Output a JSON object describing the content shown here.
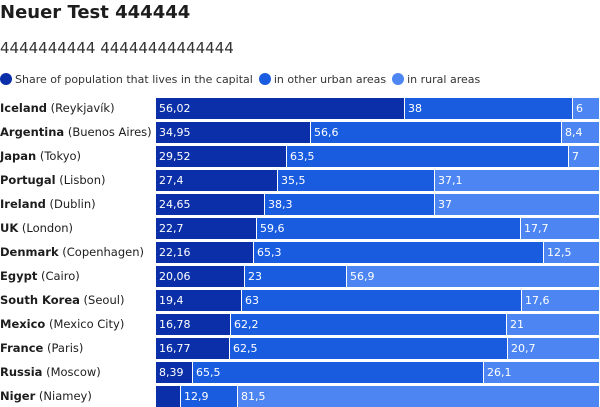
{
  "title": "Neuer Test 444444",
  "subtitle": "4444444444 44444444444444",
  "colors": {
    "capital": "#0a2fa8",
    "urban": "#1a5ce0",
    "rural": "#4d86f2"
  },
  "chart_data": {
    "type": "bar",
    "orientation": "horizontal",
    "stacked": true,
    "xlim": [
      0,
      100
    ],
    "legend_position": "top-left",
    "series": [
      {
        "name": "Share of population that lives in the capital",
        "key": "capital"
      },
      {
        "name": "in other urban areas",
        "key": "urban"
      },
      {
        "name": "in rural areas",
        "key": "rural"
      }
    ],
    "rows": [
      {
        "country": "Iceland",
        "capital_city": "(Reykjavík)",
        "values": [
          56.02,
          38,
          6
        ],
        "labels": [
          "56,02",
          "38",
          "6"
        ]
      },
      {
        "country": "Argentina",
        "capital_city": "(Buenos Aires)",
        "values": [
          34.95,
          56.6,
          8.4
        ],
        "labels": [
          "34,95",
          "56,6",
          "8,4"
        ]
      },
      {
        "country": "Japan",
        "capital_city": "(Tokyo)",
        "values": [
          29.52,
          63.5,
          7
        ],
        "labels": [
          "29,52",
          "63,5",
          "7"
        ]
      },
      {
        "country": "Portugal",
        "capital_city": "(Lisbon)",
        "values": [
          27.4,
          35.5,
          37.1
        ],
        "labels": [
          "27,4",
          "35,5",
          "37,1"
        ]
      },
      {
        "country": "Ireland",
        "capital_city": "(Dublin)",
        "values": [
          24.65,
          38.3,
          37
        ],
        "labels": [
          "24,65",
          "38,3",
          "37"
        ]
      },
      {
        "country": "UK",
        "capital_city": "(London)",
        "values": [
          22.7,
          59.6,
          17.7
        ],
        "labels": [
          "22,7",
          "59,6",
          "17,7"
        ]
      },
      {
        "country": "Denmark",
        "capital_city": "(Copenhagen)",
        "values": [
          22.16,
          65.3,
          12.5
        ],
        "labels": [
          "22,16",
          "65,3",
          "12,5"
        ]
      },
      {
        "country": "Egypt",
        "capital_city": "(Cairo)",
        "values": [
          20.06,
          23,
          56.9
        ],
        "labels": [
          "20,06",
          "23",
          "56,9"
        ]
      },
      {
        "country": "South Korea",
        "capital_city": "(Seoul)",
        "values": [
          19.4,
          63,
          17.6
        ],
        "labels": [
          "19,4",
          "63",
          "17,6"
        ]
      },
      {
        "country": "Mexico",
        "capital_city": "(Mexico City)",
        "values": [
          16.78,
          62.2,
          21
        ],
        "labels": [
          "16,78",
          "62,2",
          "21"
        ]
      },
      {
        "country": "France",
        "capital_city": "(Paris)",
        "values": [
          16.77,
          62.5,
          20.7
        ],
        "labels": [
          "16,77",
          "62,5",
          "20,7"
        ]
      },
      {
        "country": "Russia",
        "capital_city": "(Moscow)",
        "values": [
          8.39,
          65.5,
          26.1
        ],
        "labels": [
          "8,39",
          "65,5",
          "26,1"
        ]
      },
      {
        "country": "Niger",
        "capital_city": "(Niamey)",
        "values": [
          5.6,
          12.9,
          81.5
        ],
        "labels": [
          "",
          "12,9",
          "81,5"
        ]
      }
    ]
  }
}
